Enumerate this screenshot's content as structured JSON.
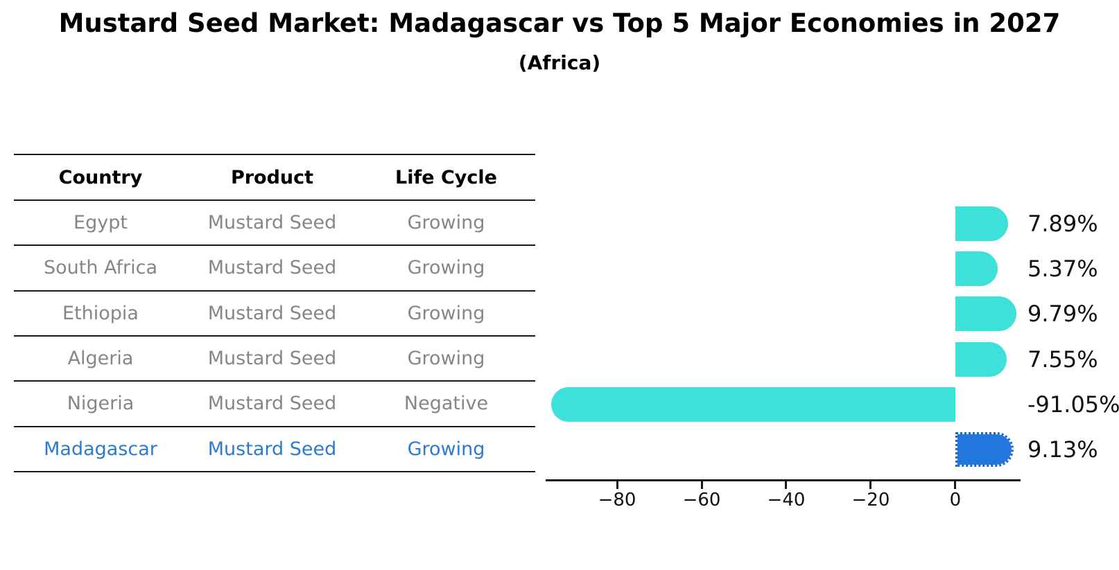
{
  "header": {
    "title": "Mustard Seed Market: Madagascar vs Top 5 Major Economies in 2027",
    "subtitle": "(Africa)"
  },
  "table": {
    "columns": [
      "Country",
      "Product",
      "Life Cycle"
    ],
    "rows": [
      {
        "country": "Egypt",
        "product": "Mustard Seed",
        "life_cycle": "Growing",
        "highlight": false
      },
      {
        "country": "South Africa",
        "product": "Mustard Seed",
        "life_cycle": "Growing",
        "highlight": false
      },
      {
        "country": "Ethiopia",
        "product": "Mustard Seed",
        "life_cycle": "Growing",
        "highlight": false
      },
      {
        "country": "Algeria",
        "product": "Mustard Seed",
        "life_cycle": "Growing",
        "highlight": false
      },
      {
        "country": "Nigeria",
        "product": "Mustard Seed",
        "life_cycle": "Negative",
        "highlight": false
      },
      {
        "country": "Madagascar",
        "product": "Mustard Seed",
        "life_cycle": "Growing",
        "highlight": true
      }
    ]
  },
  "chart_data": {
    "type": "bar",
    "orientation": "horizontal",
    "title": "Mustard Seed Market: Madagascar vs Top 5 Major Economies in 2027",
    "subtitle": "(Africa)",
    "categories": [
      "Egypt",
      "South Africa",
      "Ethiopia",
      "Algeria",
      "Nigeria",
      "Madagascar"
    ],
    "values": [
      7.89,
      5.37,
      9.79,
      7.55,
      -91.05,
      9.13
    ],
    "value_labels": [
      "7.89%",
      "5.37%",
      "9.79%",
      "7.55%",
      "-91.05%",
      "9.13%"
    ],
    "unit": "%",
    "xlim": [
      -96.9,
      15.1
    ],
    "xticks": [
      -80,
      -60,
      -40,
      -20,
      0
    ],
    "xtick_labels": [
      "−80",
      "−60",
      "−40",
      "−20",
      "0"
    ],
    "grid": false,
    "legend": false,
    "highlight_index": 5,
    "colors": {
      "bar": "#3EE0DA",
      "highlight_bar": "#2277DC",
      "highlight_edge": "#1A66C9",
      "axis": "#1a1a1a",
      "value_label": "#111111",
      "table_text": "#868686",
      "highlight_text": "#2B7BCE"
    }
  }
}
